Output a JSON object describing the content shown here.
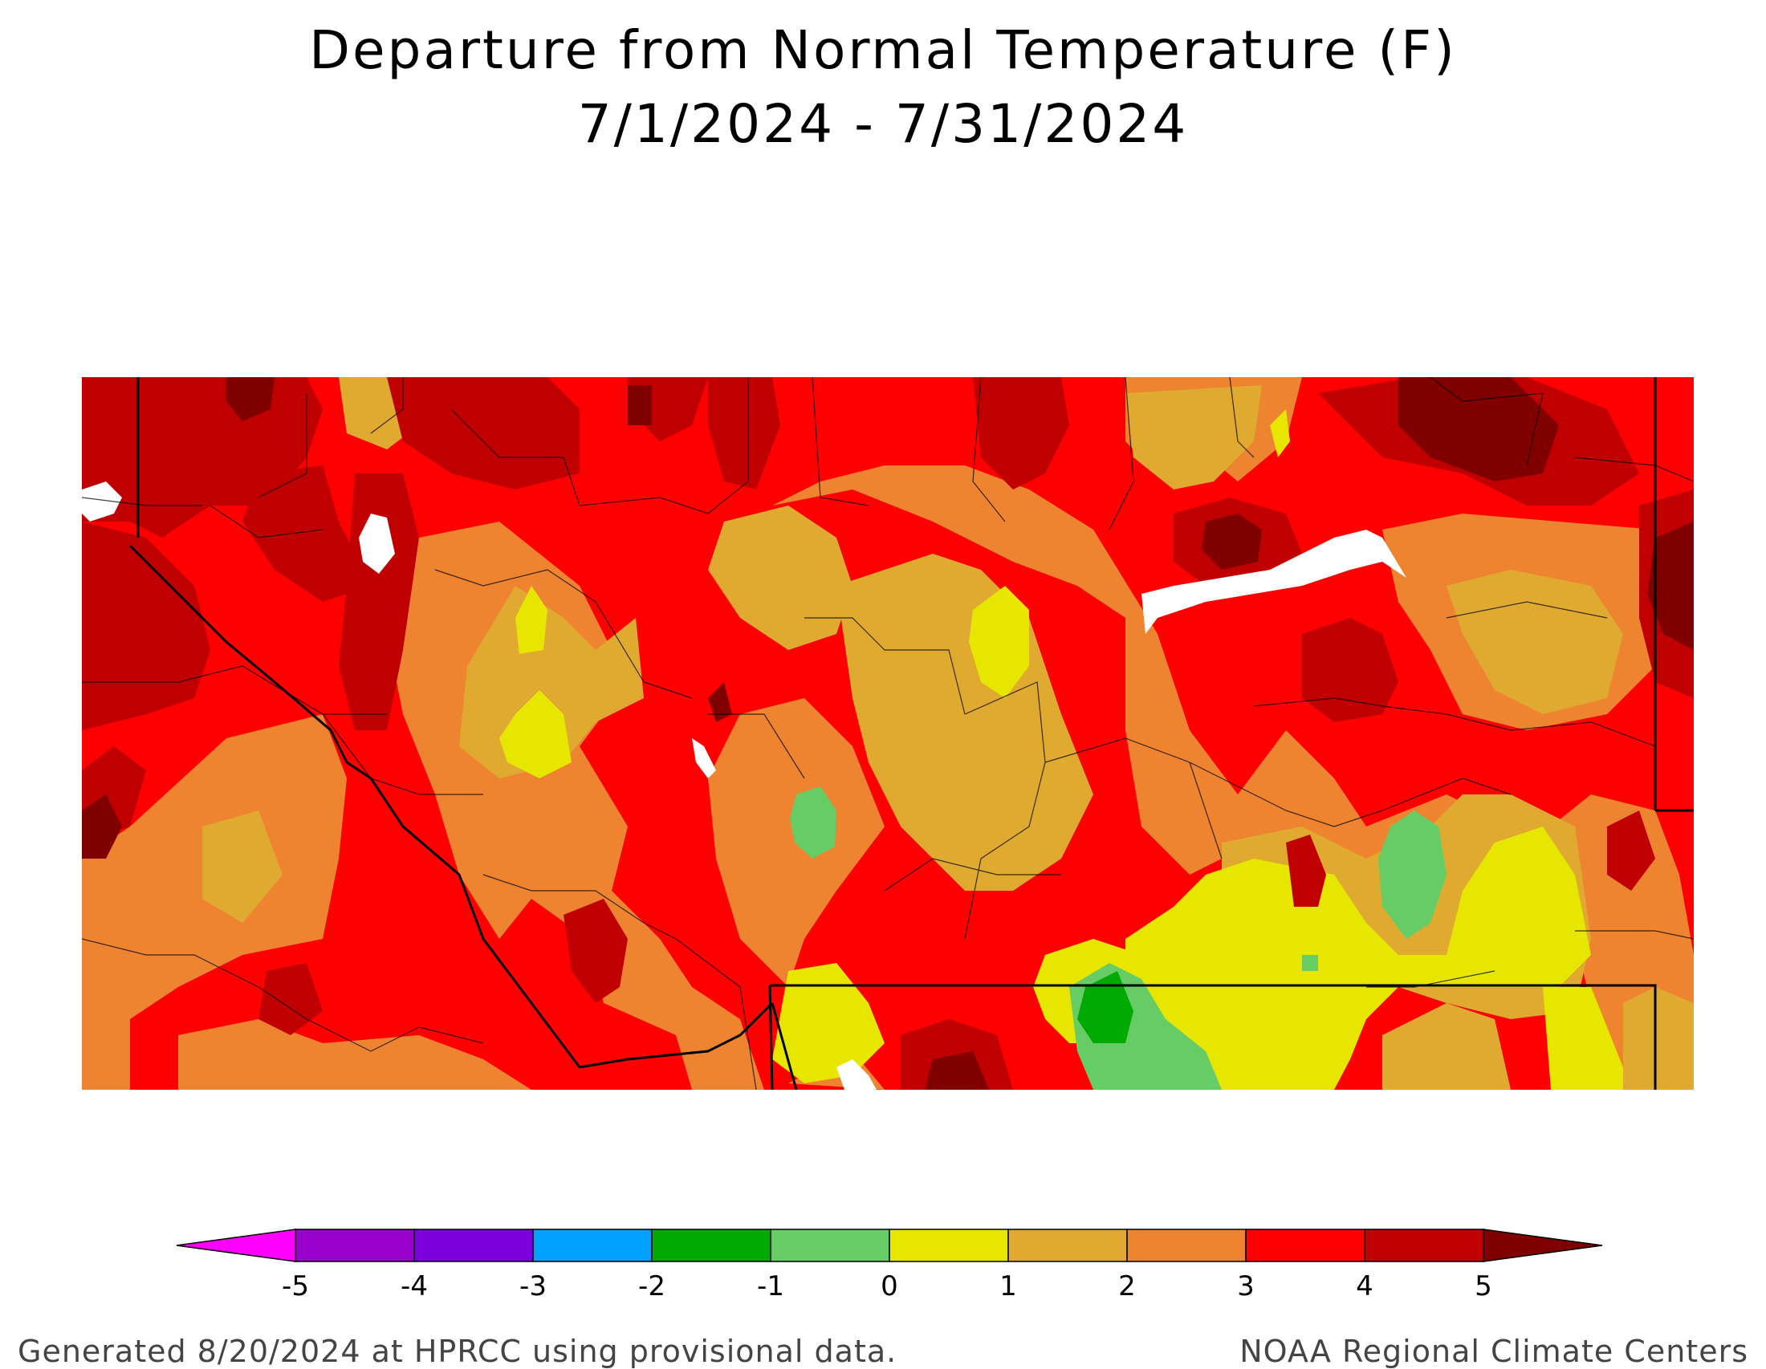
{
  "title": {
    "line1": "Departure from Normal Temperature (F)",
    "line2": "7/1/2024 - 7/31/2024"
  },
  "legend": {
    "tick_labels": [
      "-5",
      "-4",
      "-3",
      "-2",
      "-1",
      "0",
      "1",
      "2",
      "3",
      "4",
      "5"
    ],
    "bins": [
      {
        "from": null,
        "to": -5,
        "color": "#ff00ff"
      },
      {
        "from": -5,
        "to": -4,
        "color": "#9900cc"
      },
      {
        "from": -4,
        "to": -3,
        "color": "#7b00dd"
      },
      {
        "from": -3,
        "to": -2,
        "color": "#00a0ff"
      },
      {
        "from": -2,
        "to": -1,
        "color": "#00aa00"
      },
      {
        "from": -1,
        "to": 0,
        "color": "#66cc66"
      },
      {
        "from": 0,
        "to": 1,
        "color": "#e6e600"
      },
      {
        "from": 1,
        "to": 2,
        "color": "#e0aa30"
      },
      {
        "from": 2,
        "to": 3,
        "color": "#ee8430"
      },
      {
        "from": 3,
        "to": 4,
        "color": "#ff0000"
      },
      {
        "from": 4,
        "to": 5,
        "color": "#c00000"
      },
      {
        "from": 5,
        "to": null,
        "color": "#800000"
      }
    ]
  },
  "footer": {
    "left": "Generated 8/20/2024 at HPRCC using provisional data.",
    "right": "NOAA Regional Climate Centers"
  }
}
